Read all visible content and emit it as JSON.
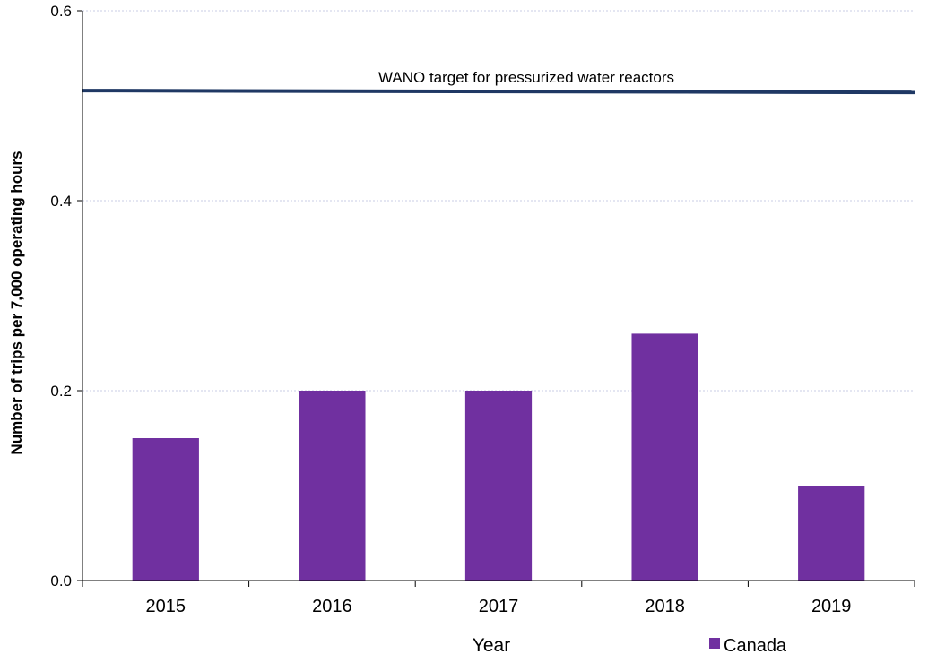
{
  "chart_data": {
    "type": "bar",
    "categories": [
      "2015",
      "2016",
      "2017",
      "2018",
      "2019"
    ],
    "series": [
      {
        "name": "Canada",
        "values": [
          0.15,
          0.2,
          0.2,
          0.26,
          0.1
        ],
        "color": "#7030A0"
      }
    ],
    "xlabel": "Year",
    "ylabel": "Number of trips per 7,000 operating hours",
    "ylim": [
      0,
      0.6
    ],
    "yticks": [
      "0.0",
      "0.2",
      "0.4",
      "0.6"
    ],
    "grid": true,
    "legend_position": "bottom-right",
    "reference_line": {
      "label": "WANO target for pressurized water reactors",
      "value": 0.515,
      "color": "#1F3864"
    }
  }
}
